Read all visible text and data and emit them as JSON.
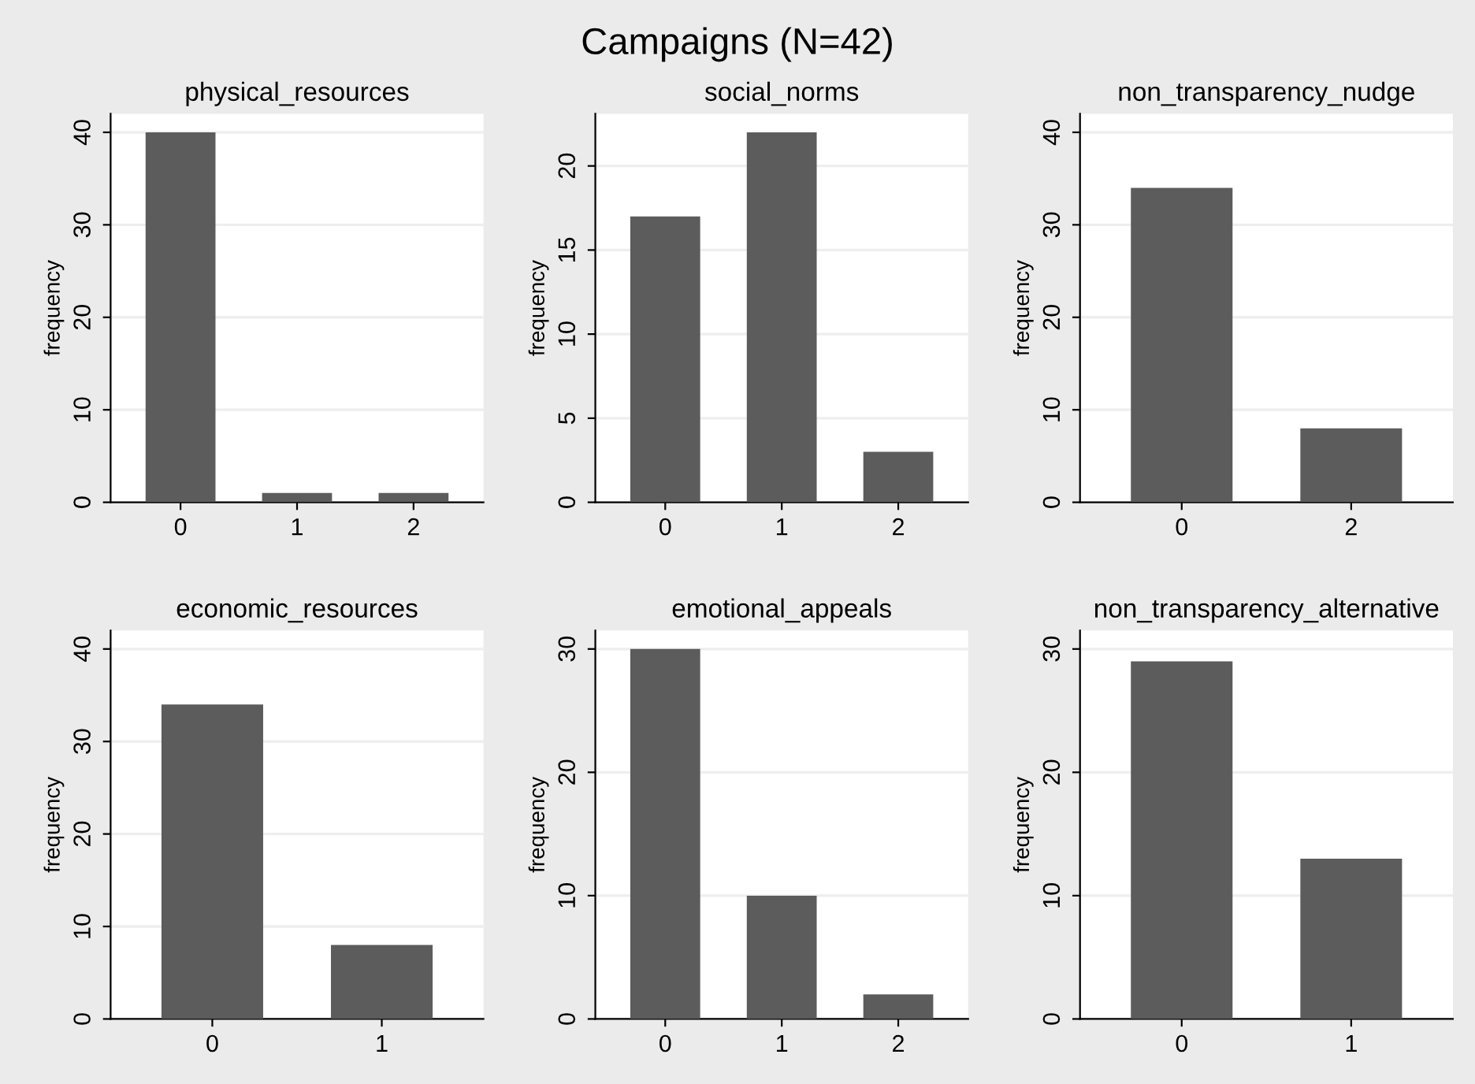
{
  "chart_data": [
    {
      "type": "bar",
      "title": "physical_resources",
      "ylabel": "frequency",
      "annotations": [
        "Campaigns (N=42)"
      ],
      "categories": [
        "0",
        "1",
        "2"
      ],
      "values": [
        40,
        1,
        1
      ],
      "color": "#5c5c5c",
      "ylim": [
        0,
        42
      ],
      "yticks": [
        0,
        10,
        20,
        30,
        40
      ],
      "grid": "y"
    },
    {
      "type": "bar",
      "title": "social_norms",
      "ylabel": "frequency",
      "categories": [
        "0",
        "1",
        "2"
      ],
      "values": [
        17,
        22,
        3
      ],
      "color": "#5c5c5c",
      "ylim": [
        0,
        23.1
      ],
      "yticks": [
        0,
        5,
        10,
        15,
        20
      ],
      "grid": "y"
    },
    {
      "type": "bar",
      "title": "non_transparency_nudge",
      "ylabel": "frequency",
      "categories": [
        "0",
        "2"
      ],
      "values": [
        34,
        8
      ],
      "color": "#5c5c5c",
      "ylim": [
        0,
        42
      ],
      "yticks": [
        0,
        10,
        20,
        30,
        40
      ],
      "grid": "y"
    },
    {
      "type": "bar",
      "title": "economic_resources",
      "ylabel": "frequency",
      "categories": [
        "0",
        "1"
      ],
      "values": [
        34,
        8
      ],
      "color": "#5c5c5c",
      "ylim": [
        0,
        42
      ],
      "yticks": [
        0,
        10,
        20,
        30,
        40
      ],
      "grid": "y"
    },
    {
      "type": "bar",
      "title": "emotional_appeals",
      "ylabel": "frequency",
      "categories": [
        "0",
        "1",
        "2"
      ],
      "values": [
        30,
        10,
        2
      ],
      "color": "#5c5c5c",
      "ylim": [
        0,
        31.5
      ],
      "yticks": [
        0,
        10,
        20,
        30
      ],
      "grid": "y"
    },
    {
      "type": "bar",
      "title": "non_transparency_alternative",
      "ylabel": "frequency",
      "categories": [
        "0",
        "1"
      ],
      "values": [
        29,
        13
      ],
      "color": "#5c5c5c",
      "ylim": [
        0,
        31.5
      ],
      "yticks": [
        0,
        10,
        20,
        30
      ],
      "grid": "y"
    }
  ]
}
